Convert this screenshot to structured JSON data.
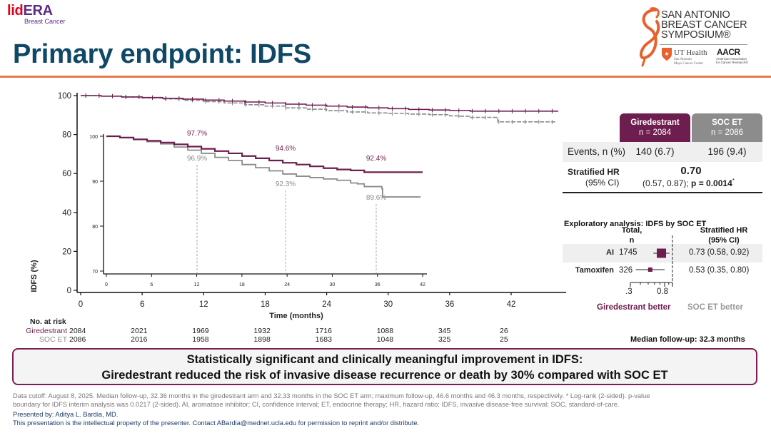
{
  "header": {
    "logo_lid": "lid",
    "logo_era": "ERA",
    "logo_sub": "Breast Cancer",
    "title": "Primary endpoint: IDFS",
    "sabcs_lines": [
      "SAN ANTONIO",
      "BREAST CANCER",
      "SYMPOSIUM®"
    ],
    "ut_health": "UT Health",
    "ut_health_sub": [
      "San Antonio",
      "Mays Cancer Center"
    ],
    "aacr": "AACR",
    "aacr_sub": [
      "American Association",
      "for Cancer Research®"
    ]
  },
  "colors": {
    "giredestrant": "#6e1d4f",
    "soc": "#8c8c8c",
    "title": "#0f4866",
    "accent_rule": "#e8794a"
  },
  "chart_data": [
    {
      "type": "line",
      "title": "Kaplan-Meier IDFS",
      "xlabel": "Time (months)",
      "ylabel": "IDFS (%)",
      "xlim": [
        0,
        47
      ],
      "ylim": [
        0,
        100
      ],
      "x_ticks": [
        "0",
        "6",
        "12",
        "18",
        "24",
        "30",
        "36",
        "42"
      ],
      "y_ticks": [
        "0",
        "20",
        "40",
        "60",
        "80",
        "100"
      ],
      "grid": false,
      "series": [
        {
          "name": "Giredestrant",
          "x": [
            0,
            2,
            4,
            6,
            8,
            10,
            12,
            14,
            16,
            18,
            20,
            22,
            24,
            26,
            28,
            30,
            32,
            34,
            36,
            37,
            38,
            40,
            42,
            44,
            46.6
          ],
          "y": [
            100,
            99.7,
            99.3,
            99.0,
            98.6,
            98.2,
            97.7,
            97.2,
            96.7,
            96.2,
            95.6,
            95.1,
            94.6,
            94.1,
            93.7,
            93.3,
            92.9,
            92.6,
            92.4,
            92.4,
            92.0,
            92.0,
            92.0,
            92.0,
            92.0
          ]
        },
        {
          "name": "SOC ET",
          "x": [
            0,
            2,
            4,
            6,
            8,
            10,
            12,
            14,
            16,
            18,
            20,
            22,
            24,
            26,
            28,
            30,
            32,
            34,
            36,
            37,
            38,
            39.5,
            40.6,
            40.7,
            42,
            44,
            46.3
          ],
          "y": [
            100,
            99.7,
            99.3,
            98.8,
            98.3,
            97.6,
            96.9,
            96.2,
            95.3,
            94.6,
            93.7,
            93.0,
            92.3,
            91.6,
            91.1,
            90.8,
            90.5,
            90.2,
            89.6,
            89.4,
            88.8,
            88.8,
            88.3,
            86.5,
            86.5,
            86.5,
            86.5
          ]
        }
      ]
    },
    {
      "type": "line",
      "title": "Inset (zoomed)",
      "xlim": [
        0,
        42
      ],
      "ylim": [
        70,
        100
      ],
      "x_ticks": [
        "0",
        "6",
        "12",
        "18",
        "24",
        "30",
        "36",
        "42"
      ],
      "y_ticks": [
        "70",
        "80",
        "90",
        "100"
      ],
      "landmarks": [
        {
          "month": 12,
          "giredestrant": "97.7%",
          "soc": "96.9%"
        },
        {
          "month": 24,
          "giredestrant": "94.6%",
          "soc": "92.3%"
        },
        {
          "month": 36,
          "giredestrant": "92.4%",
          "soc": "89.6%"
        }
      ]
    },
    {
      "type": "forest",
      "title": "Exploratory analysis: IDFS by SOC ET",
      "col_total": [
        "Total,",
        "n"
      ],
      "col_hr": [
        "Stratified HR",
        "(95% CI)"
      ],
      "rows": [
        {
          "label": "AI",
          "n": "1745",
          "hr": 0.73,
          "lo": 0.58,
          "hi": 0.92,
          "text": "0.73 (0.58, 0.92)"
        },
        {
          "label": "Tamoxifen",
          "n": "326",
          "hr": 0.53,
          "lo": 0.35,
          "hi": 0.8,
          "text": "0.53 (0.35, 0.80)"
        }
      ],
      "x_tick_labels": [
        ".3",
        "0.8"
      ],
      "left_label": "Giredestrant better",
      "right_label": "SOC ET better"
    }
  ],
  "summary_table": {
    "arms": [
      {
        "name": "Giredestrant",
        "n": "n = 2084"
      },
      {
        "name": "SOC ET",
        "n": "n = 2086"
      }
    ],
    "events_label": "Events, n (%)",
    "events": [
      "140 (6.7)",
      "196 (9.4)"
    ],
    "hr_label": "Stratified HR",
    "hr_ci_label": "(95% CI)",
    "hr_value": "0.70",
    "hr_ci": "(0.57, 0.87); ",
    "p_value": "p = 0.0014",
    "p_star": "*"
  },
  "at_risk": {
    "label": "No. at risk",
    "rows": [
      {
        "arm": "Giredestrant",
        "values": [
          "2084",
          "2021",
          "1969",
          "1932",
          "1716",
          "1088",
          "345",
          "26"
        ]
      },
      {
        "arm": "SOC ET",
        "values": [
          "2086",
          "2016",
          "1958",
          "1898",
          "1683",
          "1048",
          "325",
          "25"
        ]
      }
    ]
  },
  "median_followup": "Median follow-up: 32.3 months",
  "callout": {
    "line1": "Statistically significant and clinically meaningful improvement in IDFS:",
    "line2": "Giredestrant reduced the risk of invasive disease recurrence or death by 30% compared with SOC ET"
  },
  "footnote": {
    "line1": "Data cutoff: August 8, 2025. Median follow-up, 32.36 months in the giredestrant arm and 32.33 months in the SOC ET arm; maximum follow-up, 46.6 months and 46.3 months, respectively. * Log-rank (2-sided). p-value",
    "line2": "boundary for IDFS interim analysis was 0.0217 (2-sided). AI, aromatase inhibitor; CI, confidence interval; ET, endocrine therapy; HR, hazard ratio; IDFS, invasive disease-free survival; SOC, standard-of-care.",
    "presented_by": "Presented by: Aditya L. Bardia, MD.",
    "ip_notice": "This presentation is the intellectual property of the presenter. Contact ABardia@mednet.ucla.edu for permission to reprint and/or distribute."
  }
}
